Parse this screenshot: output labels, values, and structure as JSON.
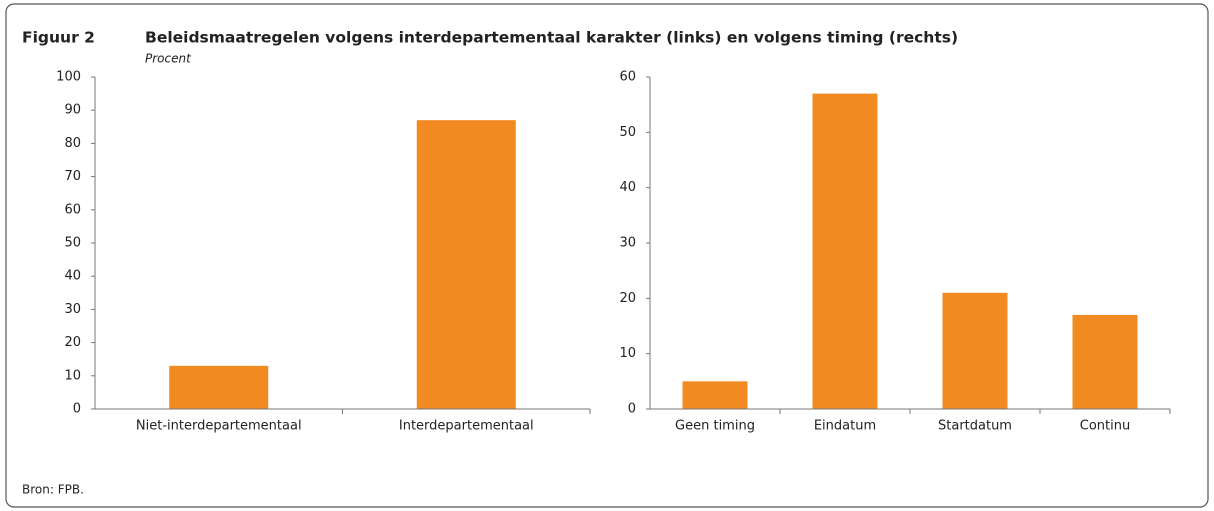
{
  "figure": {
    "label": "Figuur 2",
    "title": "Beleidsmaatregelen volgens interdepartementaal karakter (links) en volgens timing (rechts)",
    "subtitle": "Procent",
    "source": "Bron: FPB."
  },
  "chart_data": [
    {
      "type": "bar",
      "categories": [
        "Niet-interdepartementaal",
        "Interdepartementaal"
      ],
      "values": [
        13,
        87
      ],
      "color": "#f28a22",
      "ylim": [
        0,
        100
      ],
      "yticks": [
        0,
        10,
        20,
        30,
        40,
        50,
        60,
        70,
        80,
        90,
        100
      ]
    },
    {
      "type": "bar",
      "categories": [
        "Geen timing",
        "Eindatum",
        "Startdatum",
        "Continu"
      ],
      "values": [
        5,
        57,
        21,
        17
      ],
      "color": "#f28a22",
      "ylim": [
        0,
        60
      ],
      "yticks": [
        0,
        10,
        20,
        30,
        40,
        50,
        60
      ]
    }
  ]
}
